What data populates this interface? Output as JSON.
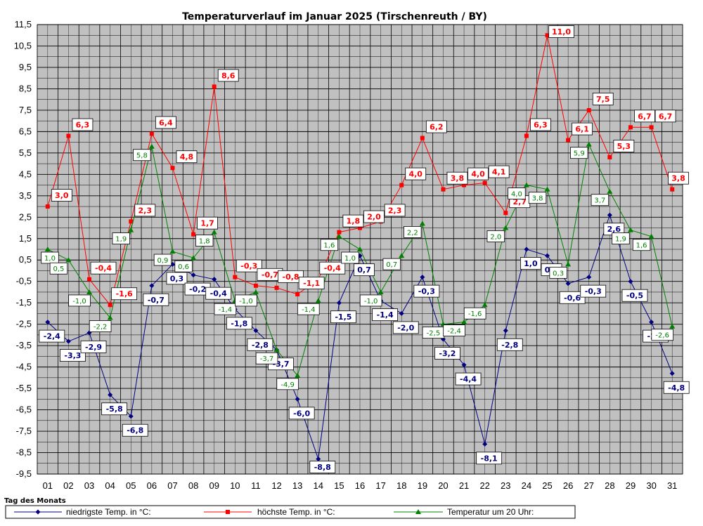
{
  "chart_data": {
    "type": "line",
    "title": "Temperaturverlauf im Januar 2025 (Tirschenreuth / BY)",
    "xlabel": "Tag des Monats",
    "ylabel": "",
    "ylim": [
      -9.5,
      11.5
    ],
    "y_ticks": [
      11.5,
      10.5,
      9.5,
      8.5,
      7.5,
      6.5,
      5.5,
      4.5,
      3.5,
      2.5,
      1.5,
      0.5,
      -0.5,
      -1.5,
      -2.5,
      -3.5,
      -4.5,
      -5.5,
      -6.5,
      -7.5,
      -8.5,
      -9.5
    ],
    "y_tick_labels": [
      "11,5",
      "10,5",
      "9,5",
      "8,5",
      "7,5",
      "6,5",
      "5,5",
      "4,5",
      "3,5",
      "2,5",
      "1,5",
      "0,5",
      "-0,5",
      "-1,5",
      "-2,5",
      "-3,5",
      "-4,5",
      "-5,5",
      "-6,5",
      "-7,5",
      "-8,5",
      "-9,5"
    ],
    "categories": [
      "01",
      "02",
      "03",
      "04",
      "05",
      "06",
      "07",
      "08",
      "09",
      "10",
      "11",
      "12",
      "13",
      "14",
      "15",
      "16",
      "17",
      "18",
      "19",
      "20",
      "21",
      "22",
      "23",
      "24",
      "25",
      "26",
      "27",
      "28",
      "29",
      "30",
      "31"
    ],
    "grid": true,
    "legend_position": "bottom",
    "series": [
      {
        "name": "niedrigste Temp. in °C:",
        "color": "#000080",
        "marker": "diamond",
        "values": [
          -2.4,
          -3.3,
          -2.9,
          -5.8,
          -6.8,
          -0.7,
          0.3,
          -0.2,
          -0.4,
          -1.8,
          -2.8,
          -3.7,
          -6.0,
          -8.8,
          -1.5,
          0.7,
          -1.4,
          -2.0,
          -0.3,
          -3.2,
          -4.4,
          -8.1,
          -2.8,
          1.0,
          0.7,
          -0.6,
          -0.3,
          2.6,
          -0.5,
          -2.4,
          -4.8
        ],
        "labels": [
          "-2,4",
          "-3,3",
          "-2,9",
          "-5,8",
          "-6,8",
          "-0,7",
          "0,3",
          "-0,2",
          "-0,4",
          "-1,8",
          "-2,8",
          "-3,7",
          "-6,0",
          "-8,8",
          "-1,5",
          "0,7",
          "-1,4",
          "-2,0",
          "-0,3",
          "-3,2",
          "-4,4",
          "-8,1",
          "-2,8",
          "1,0",
          "0,7",
          "-0,6",
          "-0,3",
          "2,6",
          "-0,5",
          "-2,4",
          "-4,8"
        ]
      },
      {
        "name": "höchste Temp. in °C:",
        "color": "#ff0000",
        "marker": "square",
        "values": [
          3.0,
          6.3,
          -0.4,
          -1.6,
          2.3,
          6.4,
          4.8,
          1.7,
          8.6,
          -0.3,
          -0.7,
          -0.8,
          -1.1,
          -0.4,
          1.8,
          2.0,
          2.3,
          4.0,
          6.2,
          3.8,
          4.0,
          4.1,
          2.7,
          6.3,
          11.0,
          6.1,
          7.5,
          5.3,
          6.7,
          6.7,
          3.8
        ],
        "labels": [
          "3,0",
          "6,3",
          "-0,4",
          "-1,6",
          "2,3",
          "6,4",
          "4,8",
          "1,7",
          "8,6",
          "-0,3",
          "-0,7",
          "-0,8",
          "-1,1",
          "-0,4",
          "1,8",
          "2,0",
          "2,3",
          "4,0",
          "6,2",
          "3,8",
          "4,0",
          "4,1",
          "2,7",
          "6,3",
          "11,0",
          "6,1",
          "7,5",
          "5,3",
          "6,7",
          "6,7",
          "3,8"
        ]
      },
      {
        "name": "Temperatur um 20 Uhr:",
        "color": "#008000",
        "marker": "triangle",
        "values": [
          1.0,
          0.5,
          -1.0,
          -2.2,
          1.9,
          5.8,
          0.9,
          0.6,
          1.8,
          -1.4,
          -1.0,
          -3.7,
          -4.9,
          -1.4,
          1.6,
          1.0,
          -1.0,
          0.7,
          2.2,
          -2.5,
          -2.4,
          -1.6,
          2.0,
          4.0,
          3.8,
          0.3,
          5.9,
          3.7,
          1.9,
          1.6,
          -2.6
        ],
        "labels": [
          "1,0",
          "0,5",
          "-1,0",
          "-2,2",
          "1,9",
          "5,8",
          "0,9",
          "0,6",
          "1,8",
          "-1,4",
          "-1,0",
          "-3,7",
          "-4,9",
          "-1,4",
          "1,6",
          "1,0",
          "-1,0",
          "0,7",
          "2,2",
          "-2,5",
          "-2,4",
          "-1,6",
          "2,0",
          "4,0",
          "3,8",
          "0,3",
          "5,9",
          "3,7",
          "1,9",
          "1,6",
          "-2,6"
        ]
      }
    ]
  }
}
